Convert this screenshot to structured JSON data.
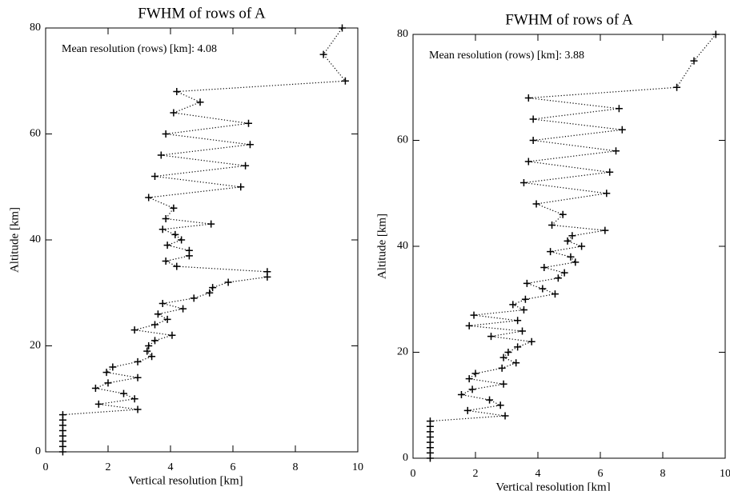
{
  "chart_data": [
    {
      "type": "line",
      "title": "FWHM of rows of A",
      "annotation": "Mean resolution (rows) [km]: 4.08",
      "xlabel": "Vertical resolution [km]",
      "ylabel": "Altitude [km]",
      "xlim": [
        0,
        10
      ],
      "ylim": [
        0,
        80
      ],
      "xticks": [
        0,
        2,
        4,
        6,
        8,
        10
      ],
      "yticks": [
        0,
        20,
        40,
        60,
        80
      ],
      "color": "#000000",
      "x": [
        0.55,
        0.55,
        0.55,
        0.55,
        0.55,
        0.55,
        0.55,
        0.55,
        2.95,
        1.7,
        2.85,
        2.5,
        1.6,
        2.0,
        2.95,
        1.95,
        2.15,
        2.95,
        3.4,
        3.25,
        3.3,
        3.5,
        4.05,
        2.85,
        3.5,
        3.9,
        3.6,
        4.4,
        3.75,
        4.75,
        5.25,
        5.35,
        5.85,
        7.1,
        7.1,
        4.2,
        3.85,
        4.6,
        4.6,
        3.9,
        4.35,
        4.15,
        3.75,
        5.3,
        3.85,
        4.1,
        3.3,
        6.25,
        3.5,
        6.4,
        3.7,
        6.55,
        3.85,
        6.5,
        4.1,
        4.95,
        4.2,
        9.6,
        8.9,
        9.5
      ],
      "values": [
        0,
        1,
        2,
        3,
        4,
        5,
        6,
        7,
        8,
        9,
        10,
        11,
        12,
        13,
        14,
        15,
        16,
        17,
        18,
        19,
        20,
        21,
        22,
        23,
        24,
        25,
        26,
        27,
        28,
        29,
        30,
        31,
        32,
        33,
        34,
        35,
        36,
        37,
        38,
        39,
        40,
        41,
        42,
        43,
        44,
        46,
        48,
        50,
        52,
        54,
        56,
        58,
        60,
        62,
        64,
        66,
        68,
        70,
        75,
        80
      ]
    },
    {
      "type": "line",
      "title": "FWHM of rows of A",
      "annotation": "Mean resolution (rows) [km]: 3.88",
      "xlabel": "Vertical resolution [km]",
      "ylabel": "Altitude [km]",
      "xlim": [
        0,
        10
      ],
      "ylim": [
        0,
        80
      ],
      "xticks": [
        0,
        2,
        4,
        6,
        8,
        10
      ],
      "yticks": [
        0,
        20,
        40,
        60,
        80
      ],
      "color": "#000000",
      "x": [
        0.55,
        0.55,
        0.55,
        0.55,
        0.55,
        0.55,
        0.55,
        0.55,
        2.95,
        1.75,
        2.8,
        2.45,
        1.55,
        1.9,
        2.9,
        1.8,
        2.0,
        2.85,
        3.3,
        2.9,
        3.05,
        3.35,
        3.8,
        2.5,
        3.5,
        1.8,
        3.35,
        1.95,
        3.55,
        3.2,
        3.6,
        4.55,
        4.15,
        3.65,
        4.65,
        4.85,
        4.2,
        5.2,
        5.05,
        4.4,
        5.4,
        4.95,
        5.1,
        6.15,
        4.45,
        4.8,
        3.95,
        6.2,
        3.55,
        6.3,
        3.7,
        6.5,
        3.85,
        6.7,
        3.85,
        6.6,
        3.7,
        8.45,
        9.0,
        9.7
      ],
      "values": [
        0,
        1,
        2,
        3,
        4,
        5,
        6,
        7,
        8,
        9,
        10,
        11,
        12,
        13,
        14,
        15,
        16,
        17,
        18,
        19,
        20,
        21,
        22,
        23,
        24,
        25,
        26,
        27,
        28,
        29,
        30,
        31,
        32,
        33,
        34,
        35,
        36,
        37,
        38,
        39,
        40,
        41,
        42,
        43,
        44,
        46,
        48,
        50,
        52,
        54,
        56,
        58,
        60,
        62,
        64,
        66,
        68,
        70,
        75,
        80
      ]
    }
  ]
}
